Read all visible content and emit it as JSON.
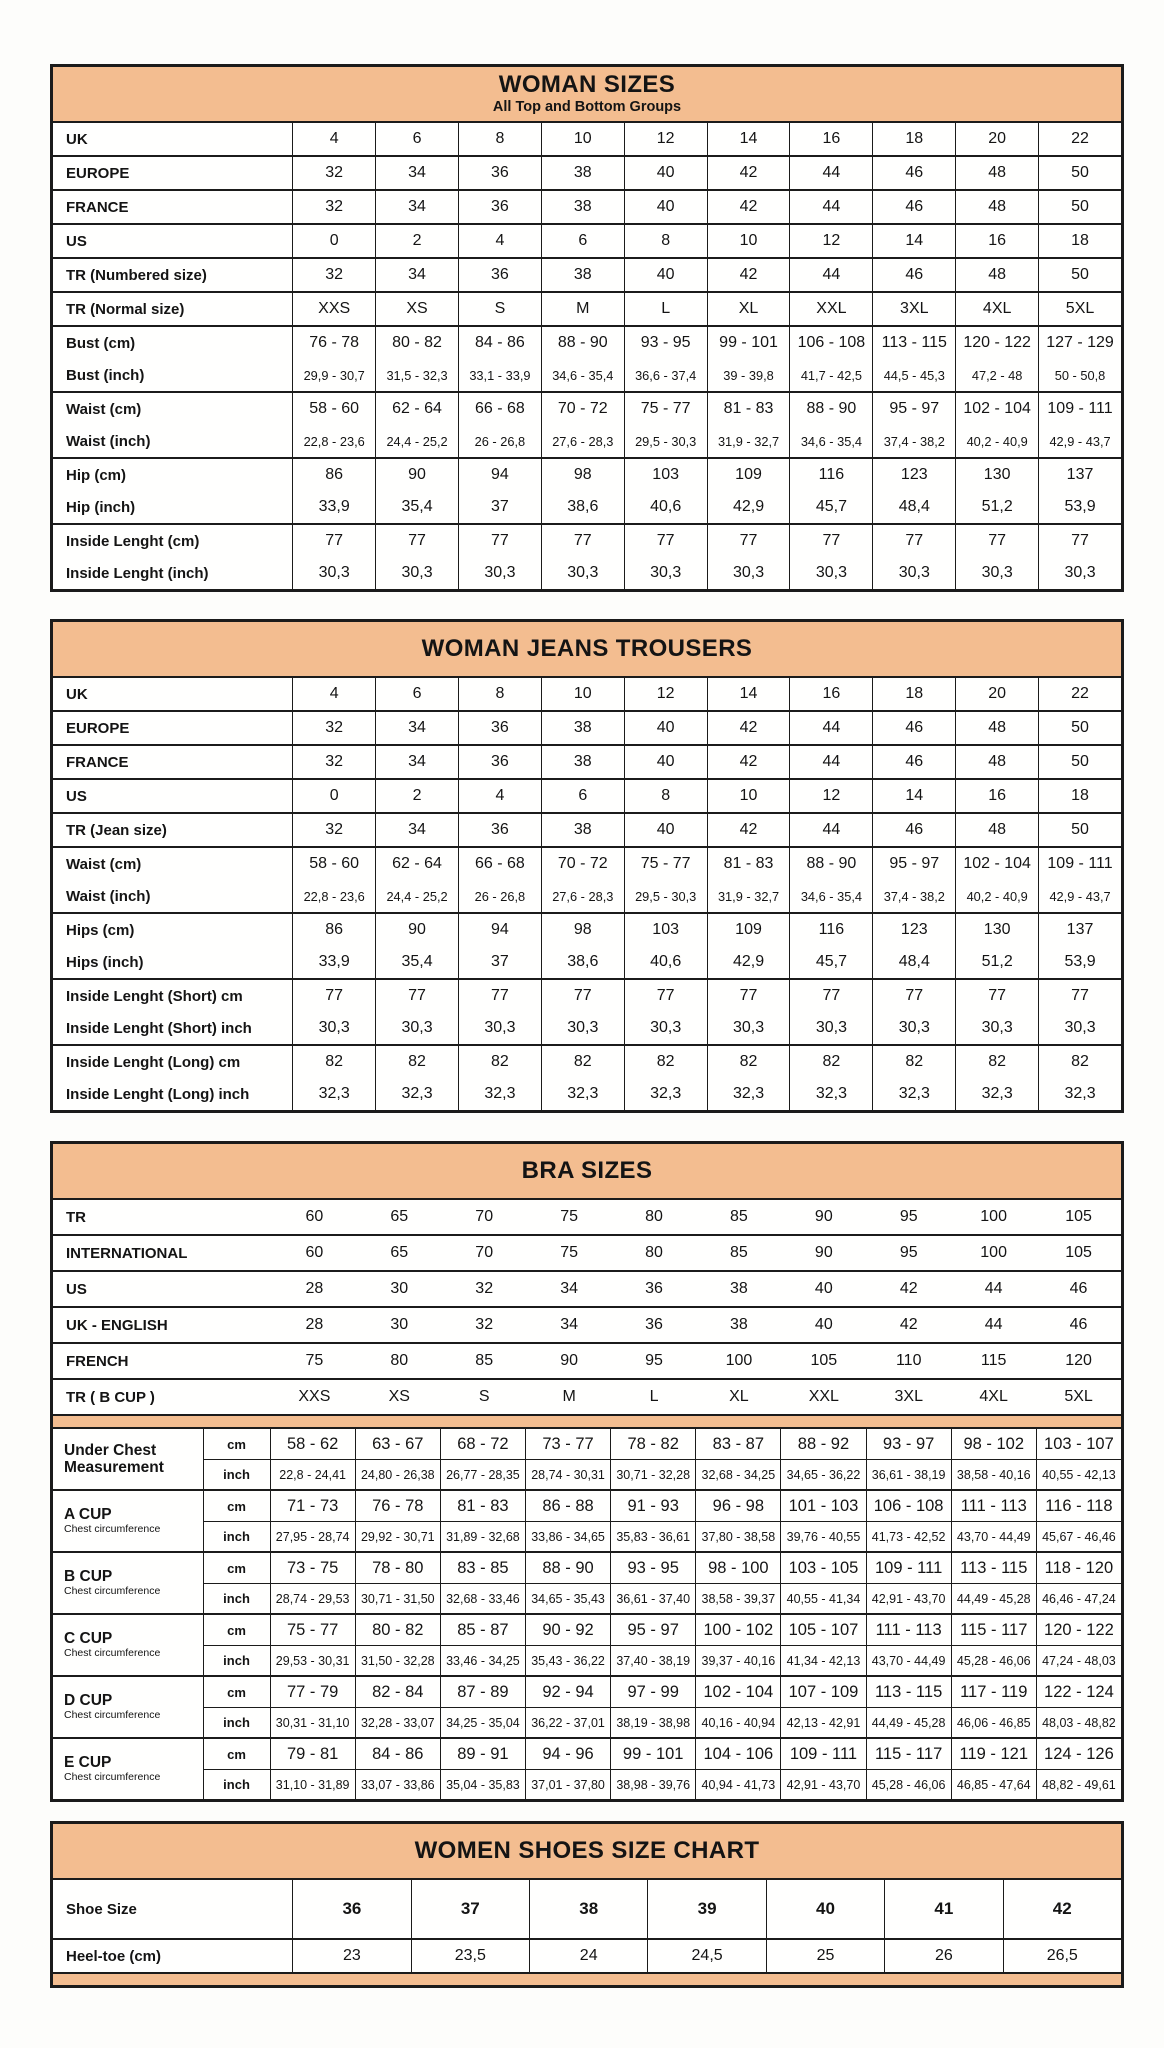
{
  "page": {
    "background": "#fdfdfb",
    "accent_color": "#f3bd90",
    "border_color": "#1b1b1b"
  },
  "tables": [
    {
      "id": "woman-sizes",
      "kind": "grid",
      "title": "WOMAN SIZES",
      "subtitle": "All Top and Bottom Groups",
      "groups": [
        {
          "rows": [
            {
              "label": "UK",
              "values": [
                "4",
                "6",
                "8",
                "10",
                "12",
                "14",
                "16",
                "18",
                "20",
                "22"
              ]
            }
          ]
        },
        {
          "rows": [
            {
              "label": "EUROPE",
              "values": [
                "32",
                "34",
                "36",
                "38",
                "40",
                "42",
                "44",
                "46",
                "48",
                "50"
              ]
            }
          ]
        },
        {
          "rows": [
            {
              "label": "FRANCE",
              "values": [
                "32",
                "34",
                "36",
                "38",
                "40",
                "42",
                "44",
                "46",
                "48",
                "50"
              ]
            }
          ]
        },
        {
          "rows": [
            {
              "label": "US",
              "values": [
                "0",
                "2",
                "4",
                "6",
                "8",
                "10",
                "12",
                "14",
                "16",
                "18"
              ]
            }
          ]
        },
        {
          "rows": [
            {
              "label": "TR (Numbered size)",
              "values": [
                "32",
                "34",
                "36",
                "38",
                "40",
                "42",
                "44",
                "46",
                "48",
                "50"
              ]
            }
          ]
        },
        {
          "rows": [
            {
              "label": "TR (Normal size)",
              "values": [
                "XXS",
                "XS",
                "S",
                "M",
                "L",
                "XL",
                "XXL",
                "3XL",
                "4XL",
                "5XL"
              ]
            }
          ]
        },
        {
          "rows": [
            {
              "label": "Bust (cm)",
              "values": [
                "76 - 78",
                "80 - 82",
                "84 - 86",
                "88 - 90",
                "93 - 95",
                "99 - 101",
                "106 - 108",
                "113 - 115",
                "120 - 122",
                "127 - 129"
              ]
            },
            {
              "label": "Bust (inch)",
              "small": true,
              "values": [
                "29,9 - 30,7",
                "31,5 - 32,3",
                "33,1 - 33,9",
                "34,6 - 35,4",
                "36,6 - 37,4",
                "39 - 39,8",
                "41,7 - 42,5",
                "44,5 - 45,3",
                "47,2 - 48",
                "50 - 50,8"
              ]
            }
          ]
        },
        {
          "rows": [
            {
              "label": "Waist (cm)",
              "values": [
                "58 - 60",
                "62 - 64",
                "66 - 68",
                "70 - 72",
                "75 - 77",
                "81 - 83",
                "88 - 90",
                "95 - 97",
                "102 - 104",
                "109 - 111"
              ]
            },
            {
              "label": "Waist (inch)",
              "small": true,
              "values": [
                "22,8 - 23,6",
                "24,4 - 25,2",
                "26 - 26,8",
                "27,6 - 28,3",
                "29,5 - 30,3",
                "31,9 - 32,7",
                "34,6 - 35,4",
                "37,4 - 38,2",
                "40,2 - 40,9",
                "42,9 - 43,7"
              ]
            }
          ]
        },
        {
          "rows": [
            {
              "label": "Hip (cm)",
              "values": [
                "86",
                "90",
                "94",
                "98",
                "103",
                "109",
                "116",
                "123",
                "130",
                "137"
              ]
            },
            {
              "label": "Hip (inch)",
              "values": [
                "33,9",
                "35,4",
                "37",
                "38,6",
                "40,6",
                "42,9",
                "45,7",
                "48,4",
                "51,2",
                "53,9"
              ]
            }
          ]
        },
        {
          "rows": [
            {
              "label": "Inside Lenght (cm)",
              "values": [
                "77",
                "77",
                "77",
                "77",
                "77",
                "77",
                "77",
                "77",
                "77",
                "77"
              ]
            },
            {
              "label": "Inside Lenght (inch)",
              "values": [
                "30,3",
                "30,3",
                "30,3",
                "30,3",
                "30,3",
                "30,3",
                "30,3",
                "30,3",
                "30,3",
                "30,3"
              ]
            }
          ]
        }
      ]
    },
    {
      "id": "woman-jeans-trousers",
      "kind": "grid",
      "title": "WOMAN JEANS TROUSERS",
      "subtitle": "",
      "groups": [
        {
          "rows": [
            {
              "label": "UK",
              "values": [
                "4",
                "6",
                "8",
                "10",
                "12",
                "14",
                "16",
                "18",
                "20",
                "22"
              ]
            }
          ]
        },
        {
          "rows": [
            {
              "label": "EUROPE",
              "values": [
                "32",
                "34",
                "36",
                "38",
                "40",
                "42",
                "44",
                "46",
                "48",
                "50"
              ]
            }
          ]
        },
        {
          "rows": [
            {
              "label": "FRANCE",
              "values": [
                "32",
                "34",
                "36",
                "38",
                "40",
                "42",
                "44",
                "46",
                "48",
                "50"
              ]
            }
          ]
        },
        {
          "rows": [
            {
              "label": "US",
              "values": [
                "0",
                "2",
                "4",
                "6",
                "8",
                "10",
                "12",
                "14",
                "16",
                "18"
              ]
            }
          ]
        },
        {
          "rows": [
            {
              "label": "TR (Jean size)",
              "values": [
                "32",
                "34",
                "36",
                "38",
                "40",
                "42",
                "44",
                "46",
                "48",
                "50"
              ]
            }
          ]
        },
        {
          "rows": [
            {
              "label": "Waist (cm)",
              "values": [
                "58 - 60",
                "62 - 64",
                "66 - 68",
                "70 - 72",
                "75 - 77",
                "81 - 83",
                "88 - 90",
                "95 - 97",
                "102 - 104",
                "109 - 111"
              ]
            },
            {
              "label": "Waist (inch)",
              "small": true,
              "values": [
                "22,8 - 23,6",
                "24,4 - 25,2",
                "26 - 26,8",
                "27,6 - 28,3",
                "29,5 - 30,3",
                "31,9 - 32,7",
                "34,6 - 35,4",
                "37,4 - 38,2",
                "40,2 - 40,9",
                "42,9 - 43,7"
              ]
            }
          ]
        },
        {
          "rows": [
            {
              "label": "Hips (cm)",
              "values": [
                "86",
                "90",
                "94",
                "98",
                "103",
                "109",
                "116",
                "123",
                "130",
                "137"
              ]
            },
            {
              "label": "Hips (inch)",
              "values": [
                "33,9",
                "35,4",
                "37",
                "38,6",
                "40,6",
                "42,9",
                "45,7",
                "48,4",
                "51,2",
                "53,9"
              ]
            }
          ]
        },
        {
          "rows": [
            {
              "label": "Inside Lenght (Short) cm",
              "values": [
                "77",
                "77",
                "77",
                "77",
                "77",
                "77",
                "77",
                "77",
                "77",
                "77"
              ]
            },
            {
              "label": "Inside Lenght (Short) inch",
              "values": [
                "30,3",
                "30,3",
                "30,3",
                "30,3",
                "30,3",
                "30,3",
                "30,3",
                "30,3",
                "30,3",
                "30,3"
              ]
            }
          ]
        },
        {
          "rows": [
            {
              "label": "Inside Lenght (Long) cm",
              "values": [
                "82",
                "82",
                "82",
                "82",
                "82",
                "82",
                "82",
                "82",
                "82",
                "82"
              ]
            },
            {
              "label": "Inside Lenght (Long) inch",
              "values": [
                "32,3",
                "32,3",
                "32,3",
                "32,3",
                "32,3",
                "32,3",
                "32,3",
                "32,3",
                "32,3",
                "32,3"
              ]
            }
          ]
        }
      ]
    },
    {
      "id": "bra-sizes",
      "kind": "bra",
      "title": "BRA SIZES",
      "open_rows": [
        {
          "label": "TR",
          "values": [
            "60",
            "65",
            "70",
            "75",
            "80",
            "85",
            "90",
            "95",
            "100",
            "105"
          ]
        },
        {
          "label": "INTERNATIONAL",
          "values": [
            "60",
            "65",
            "70",
            "75",
            "80",
            "85",
            "90",
            "95",
            "100",
            "105"
          ]
        },
        {
          "label": "US",
          "values": [
            "28",
            "30",
            "32",
            "34",
            "36",
            "38",
            "40",
            "42",
            "44",
            "46"
          ]
        },
        {
          "label": "UK - ENGLISH",
          "values": [
            "28",
            "30",
            "32",
            "34",
            "36",
            "38",
            "40",
            "42",
            "44",
            "46"
          ]
        },
        {
          "label": "FRENCH",
          "values": [
            "75",
            "80",
            "85",
            "90",
            "95",
            "100",
            "105",
            "110",
            "115",
            "120"
          ]
        },
        {
          "label": "TR ( B CUP )",
          "values": [
            "XXS",
            "XS",
            "S",
            "M",
            "L",
            "XL",
            "XXL",
            "3XL",
            "4XL",
            "5XL"
          ]
        }
      ],
      "unit_cm": "cm",
      "unit_inch": "inch",
      "cup_groups": [
        {
          "label": "Under Chest Measurement",
          "sublabel": "",
          "cm": [
            "58 - 62",
            "63 - 67",
            "68 - 72",
            "73 - 77",
            "78 - 82",
            "83 - 87",
            "88 - 92",
            "93 - 97",
            "98 - 102",
            "103 - 107"
          ],
          "inch": [
            "22,8 - 24,41",
            "24,80 - 26,38",
            "26,77 - 28,35",
            "28,74 - 30,31",
            "30,71 - 32,28",
            "32,68 - 34,25",
            "34,65 - 36,22",
            "36,61 - 38,19",
            "38,58 - 40,16",
            "40,55 - 42,13"
          ]
        },
        {
          "label": "A CUP",
          "sublabel": "Chest circumference",
          "cm": [
            "71 - 73",
            "76 - 78",
            "81 - 83",
            "86 - 88",
            "91 - 93",
            "96 - 98",
            "101 - 103",
            "106 - 108",
            "111 - 113",
            "116 - 118"
          ],
          "inch": [
            "27,95 - 28,74",
            "29,92 - 30,71",
            "31,89 - 32,68",
            "33,86 - 34,65",
            "35,83 - 36,61",
            "37,80 - 38,58",
            "39,76 - 40,55",
            "41,73 - 42,52",
            "43,70 - 44,49",
            "45,67 - 46,46"
          ]
        },
        {
          "label": "B CUP",
          "sublabel": "Chest circumference",
          "cm": [
            "73 - 75",
            "78 - 80",
            "83 - 85",
            "88 - 90",
            "93 - 95",
            "98 - 100",
            "103 - 105",
            "109 - 111",
            "113 - 115",
            "118 - 120"
          ],
          "inch": [
            "28,74 - 29,53",
            "30,71 - 31,50",
            "32,68 - 33,46",
            "34,65 - 35,43",
            "36,61 - 37,40",
            "38,58 - 39,37",
            "40,55 - 41,34",
            "42,91 - 43,70",
            "44,49 - 45,28",
            "46,46 - 47,24"
          ]
        },
        {
          "label": "C CUP",
          "sublabel": "Chest circumference",
          "cm": [
            "75 - 77",
            "80 - 82",
            "85 - 87",
            "90 - 92",
            "95 - 97",
            "100 - 102",
            "105 - 107",
            "111 - 113",
            "115 - 117",
            "120 - 122"
          ],
          "inch": [
            "29,53 - 30,31",
            "31,50 - 32,28",
            "33,46 - 34,25",
            "35,43 - 36,22",
            "37,40 - 38,19",
            "39,37 - 40,16",
            "41,34 - 42,13",
            "43,70 - 44,49",
            "45,28 - 46,06",
            "47,24 - 48,03"
          ]
        },
        {
          "label": "D CUP",
          "sublabel": "Chest circumference",
          "cm": [
            "77 - 79",
            "82 - 84",
            "87 - 89",
            "92 - 94",
            "97 - 99",
            "102 - 104",
            "107 - 109",
            "113 - 115",
            "117 - 119",
            "122 - 124"
          ],
          "inch": [
            "30,31 - 31,10",
            "32,28 - 33,07",
            "34,25 - 35,04",
            "36,22 - 37,01",
            "38,19 - 38,98",
            "40,16 - 40,94",
            "42,13 - 42,91",
            "44,49 - 45,28",
            "46,06 - 46,85",
            "48,03 - 48,82"
          ]
        },
        {
          "label": "E CUP",
          "sublabel": "Chest circumference",
          "cm": [
            "79 - 81",
            "84 - 86",
            "89 - 91",
            "94 - 96",
            "99 - 101",
            "104 - 106",
            "109 - 111",
            "115 - 117",
            "119 - 121",
            "124 - 126"
          ],
          "inch": [
            "31,10 - 31,89",
            "33,07 - 33,86",
            "35,04 - 35,83",
            "37,01 - 37,80",
            "38,98 - 39,76",
            "40,94 - 41,73",
            "42,91 - 43,70",
            "45,28 - 46,06",
            "46,85 - 47,64",
            "48,82 - 49,61"
          ]
        }
      ]
    },
    {
      "id": "women-shoes-size-chart",
      "kind": "grid",
      "title": "WOMEN SHOES SIZE CHART",
      "subtitle": "",
      "bottom_strip": true,
      "groups": [
        {
          "rows": [
            {
              "label": "Shoe Size",
              "bold": true,
              "tall": true,
              "values": [
                "36",
                "37",
                "38",
                "39",
                "40",
                "41",
                "42"
              ]
            }
          ]
        },
        {
          "rows": [
            {
              "label": "Heel-toe (cm)",
              "values": [
                "23",
                "23,5",
                "24",
                "24,5",
                "25",
                "26",
                "26,5"
              ]
            }
          ]
        }
      ]
    }
  ]
}
